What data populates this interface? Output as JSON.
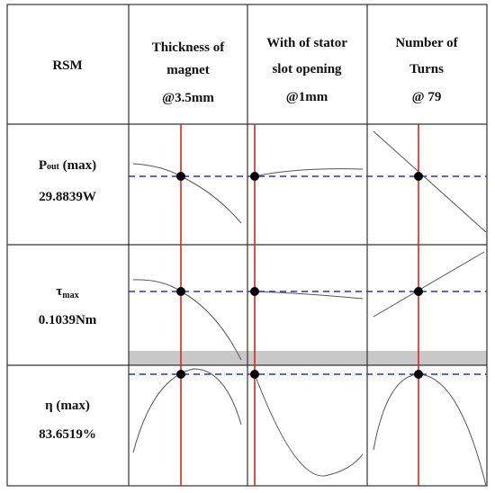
{
  "table": {
    "corner": "RSM",
    "columns": [
      {
        "lines": [
          "Thickness of",
          "magnet",
          "@3.5mm"
        ]
      },
      {
        "lines": [
          "With of stator",
          "slot opening",
          "@1mm"
        ]
      },
      {
        "lines": [
          "Number of",
          "Turns",
          "@ 79"
        ]
      }
    ],
    "rows": [
      {
        "label": {
          "main": "P",
          "sub": "out",
          "rest": " (max)"
        },
        "value": "29.8839W"
      },
      {
        "label": {
          "main": "τ",
          "sub": "max",
          "rest": ""
        },
        "value": "0.1039Nm"
      },
      {
        "label": {
          "main": "η (max)",
          "sub": "",
          "rest": ""
        },
        "value": "83.6519%"
      }
    ]
  }
}
